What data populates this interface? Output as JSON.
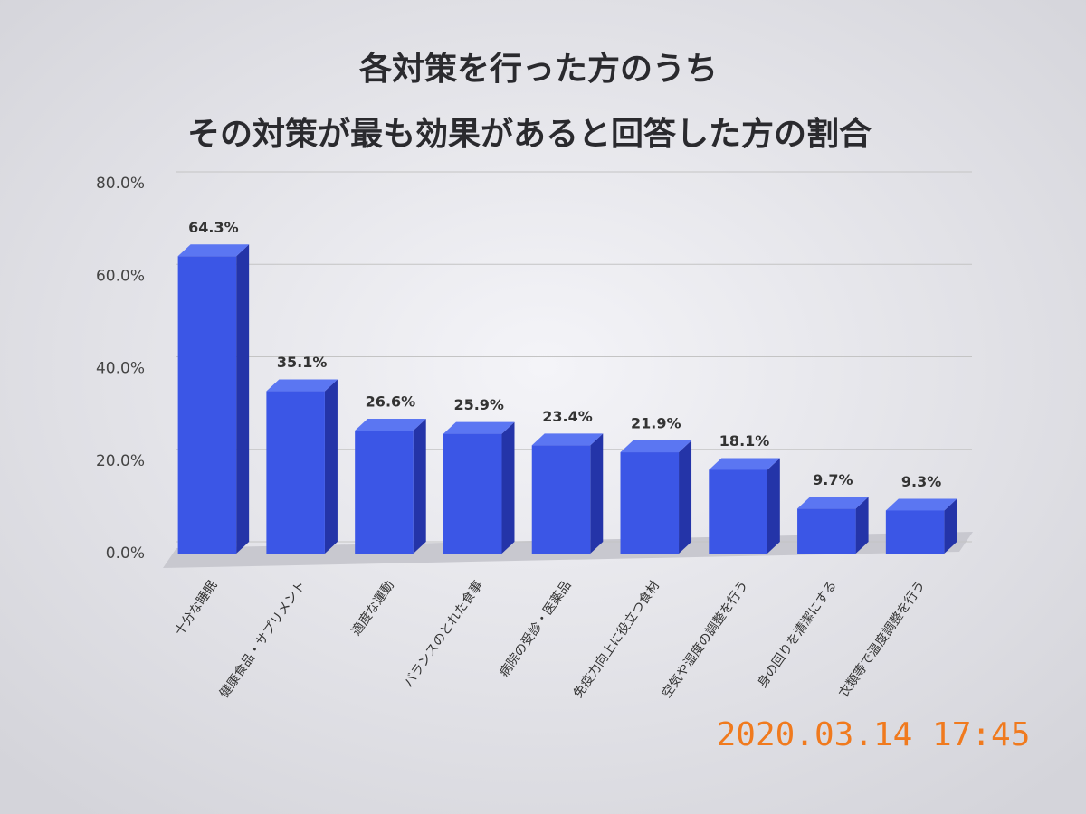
{
  "chart_data": {
    "type": "bar3d",
    "title": [
      "各対策を行った方のうち",
      "その対策が最も効果があると回答した方の割合"
    ],
    "categories": [
      "十分な睡眠",
      "健康食品・サプリメント",
      "適度な運動",
      "バランスのとれた食事",
      "病院の受診・医薬品",
      "免疫力向上に役立つ食材",
      "空気や湿度の調整を行う",
      "身の回りを清潔にする",
      "衣類等で温度調整を行う"
    ],
    "values": [
      64.3,
      35.1,
      26.6,
      25.9,
      23.4,
      21.9,
      18.1,
      9.7,
      9.3
    ],
    "value_labels": [
      "64.3%",
      "35.1%",
      "26.6%",
      "25.9%",
      "23.4%",
      "21.9%",
      "18.1%",
      "9.7%",
      "9.3%"
    ],
    "color": "#3b56e6",
    "ylim": [
      0,
      80
    ],
    "yticks": [
      {
        "value": 0,
        "label": "0.0%"
      },
      {
        "value": 20,
        "label": "20.0%"
      },
      {
        "value": 40,
        "label": "40.0%"
      },
      {
        "value": 60,
        "label": "60.0%"
      },
      {
        "value": 80,
        "label": "80.0%"
      }
    ],
    "grid": true
  },
  "timestamp": "2020.03.14 17:45"
}
